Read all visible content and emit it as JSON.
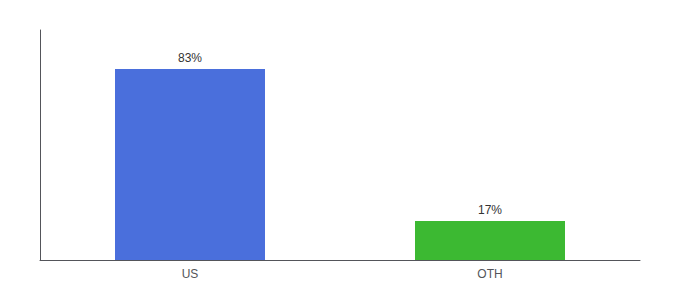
{
  "chart_data": {
    "type": "bar",
    "categories": [
      "US",
      "OTH"
    ],
    "values": [
      83,
      17
    ],
    "value_labels": [
      "83%",
      "17%"
    ],
    "data_labels": true,
    "colors": [
      "#4a6fdc",
      "#3CB932"
    ],
    "ylim": [
      0,
      100
    ],
    "grid": false,
    "tick_labels": "x"
  }
}
